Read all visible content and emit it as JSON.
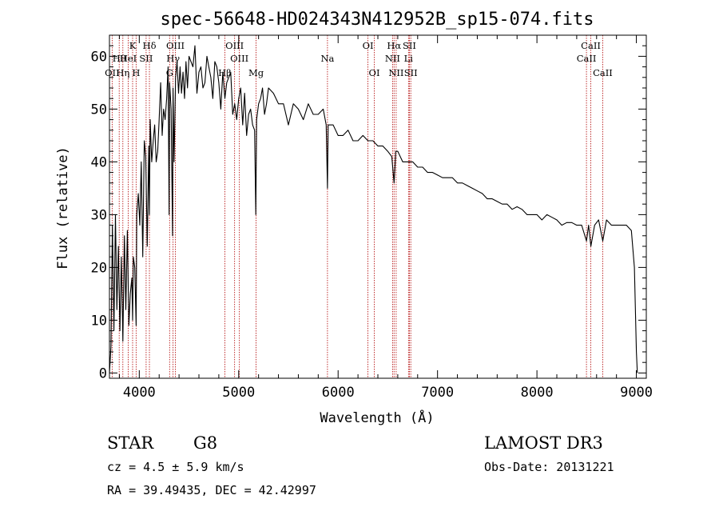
{
  "chart_data": {
    "type": "line",
    "title": "spec-56648-HD024343N412952B_sp15-074.fits",
    "xlabel": "Wavelength (Å)",
    "ylabel": "Flux (relative)",
    "xlim": [
      3700,
      9100
    ],
    "ylim": [
      -1,
      64
    ],
    "xticks": [
      4000,
      5000,
      6000,
      7000,
      8000,
      9000
    ],
    "yticks": [
      0,
      10,
      20,
      30,
      40,
      50,
      60
    ],
    "series": [
      {
        "name": "spectrum",
        "x": [
          3700,
          3715,
          3730,
          3745,
          3760,
          3775,
          3790,
          3805,
          3820,
          3835,
          3850,
          3865,
          3880,
          3895,
          3910,
          3925,
          3933,
          3940,
          3955,
          3968,
          3975,
          3990,
          4005,
          4020,
          4035,
          4050,
          4065,
          4080,
          4095,
          4102,
          4110,
          4125,
          4140,
          4155,
          4170,
          4185,
          4200,
          4215,
          4230,
          4245,
          4260,
          4275,
          4290,
          4300,
          4305,
          4320,
          4335,
          4340,
          4350,
          4365,
          4380,
          4395,
          4410,
          4425,
          4440,
          4455,
          4470,
          4485,
          4500,
          4520,
          4540,
          4560,
          4580,
          4600,
          4620,
          4640,
          4660,
          4680,
          4700,
          4720,
          4740,
          4760,
          4780,
          4800,
          4820,
          4840,
          4861,
          4880,
          4900,
          4920,
          4940,
          4960,
          4980,
          5000,
          5020,
          5040,
          5060,
          5080,
          5100,
          5120,
          5140,
          5160,
          5172,
          5180,
          5200,
          5220,
          5240,
          5260,
          5280,
          5300,
          5350,
          5400,
          5450,
          5500,
          5550,
          5600,
          5650,
          5700,
          5750,
          5800,
          5850,
          5880,
          5893,
          5900,
          5950,
          6000,
          6050,
          6100,
          6150,
          6200,
          6250,
          6300,
          6350,
          6400,
          6450,
          6500,
          6540,
          6563,
          6580,
          6600,
          6650,
          6700,
          6750,
          6800,
          6850,
          6900,
          6950,
          7000,
          7050,
          7100,
          7150,
          7200,
          7250,
          7300,
          7350,
          7400,
          7450,
          7500,
          7550,
          7600,
          7650,
          7700,
          7750,
          7800,
          7850,
          7900,
          7950,
          8000,
          8050,
          8100,
          8150,
          8200,
          8250,
          8300,
          8350,
          8400,
          8450,
          8498,
          8520,
          8542,
          8580,
          8620,
          8662,
          8700,
          8750,
          8800,
          8850,
          8900,
          8950,
          8980,
          9000,
          9010
        ],
        "y": [
          0,
          5,
          28,
          8,
          30,
          12,
          24,
          8,
          22,
          6,
          26,
          12,
          27,
          9,
          15,
          18,
          10,
          22,
          20,
          9,
          30,
          34,
          28,
          40,
          22,
          44,
          41,
          24,
          43,
          30,
          48,
          40,
          44,
          47,
          40,
          42,
          48,
          55,
          45,
          50,
          48,
          52,
          58,
          30,
          55,
          50,
          26,
          54,
          40,
          56,
          59,
          53,
          58,
          53,
          57,
          52,
          59,
          54,
          60,
          59,
          58,
          62,
          53,
          57,
          58,
          54,
          55,
          60,
          58,
          56,
          52,
          59,
          58,
          55,
          50,
          57,
          52,
          55,
          56,
          57,
          49,
          51,
          48,
          52,
          54,
          47,
          53,
          45,
          49,
          50,
          47,
          46,
          30,
          48,
          51,
          52,
          54,
          49,
          51,
          54,
          53,
          51,
          51,
          47,
          51,
          50,
          48,
          51,
          49,
          49,
          50,
          47,
          35,
          47,
          47,
          45,
          45,
          46,
          44,
          44,
          45,
          44,
          44,
          43,
          43,
          42,
          41,
          36,
          42,
          42,
          40,
          40,
          40,
          39,
          39,
          38,
          38,
          37.5,
          37,
          37,
          37,
          36,
          36,
          35.5,
          35,
          34.5,
          34,
          33,
          33,
          32.5,
          32,
          32,
          31,
          31.5,
          31,
          30,
          30,
          30,
          29,
          30,
          29.5,
          29,
          28,
          28.5,
          28.5,
          28,
          28,
          25,
          28,
          24,
          28,
          29,
          25,
          29,
          28,
          28,
          28,
          28,
          27,
          20,
          4,
          0
        ]
      }
    ],
    "lines": [
      {
        "label": "Hθ",
        "wave": 3798
      },
      {
        "label": "OII",
        "wave": 3727
      },
      {
        "label": "Hη",
        "wave": 3835
      },
      {
        "label": "HeI",
        "wave": 3889
      },
      {
        "label": "K",
        "wave": 3933
      },
      {
        "label": "H",
        "wave": 3968
      },
      {
        "label": "SII",
        "wave": 4069
      },
      {
        "label": "Hδ",
        "wave": 4102
      },
      {
        "label": "OIII",
        "wave": 4363
      },
      {
        "label": "Hγ",
        "wave": 4340
      },
      {
        "label": "G",
        "wave": 4305
      },
      {
        "label": "Hβ",
        "wave": 4861
      },
      {
        "label": "OIII",
        "wave": 4959
      },
      {
        "label": "OIII",
        "wave": 5007
      },
      {
        "label": "Mg",
        "wave": 5175
      },
      {
        "label": "Na",
        "wave": 5893
      },
      {
        "label": "OI",
        "wave": 6300
      },
      {
        "label": "OI",
        "wave": 6364
      },
      {
        "label": "Hα",
        "wave": 6563
      },
      {
        "label": "NII",
        "wave": 6548
      },
      {
        "label": "NII",
        "wave": 6584
      },
      {
        "label": "SII",
        "wave": 6717
      },
      {
        "label": "Li",
        "wave": 6708
      },
      {
        "label": "SII",
        "wave": 6731
      },
      {
        "label": "CaII",
        "wave": 8542
      },
      {
        "label": "CaII",
        "wave": 8498
      },
      {
        "label": "CaII",
        "wave": 8662
      }
    ]
  },
  "info": {
    "class": "STAR",
    "subclass": "G8",
    "survey": "LAMOST DR3",
    "cz": "cz = 4.5 ± 5.9 km/s",
    "obs_date": "Obs-Date: 20131221",
    "coords": "RA =  39.49435, DEC =  42.42997"
  },
  "colors": {
    "line": "#000000",
    "marker": "#b00000",
    "text": "#000000"
  }
}
